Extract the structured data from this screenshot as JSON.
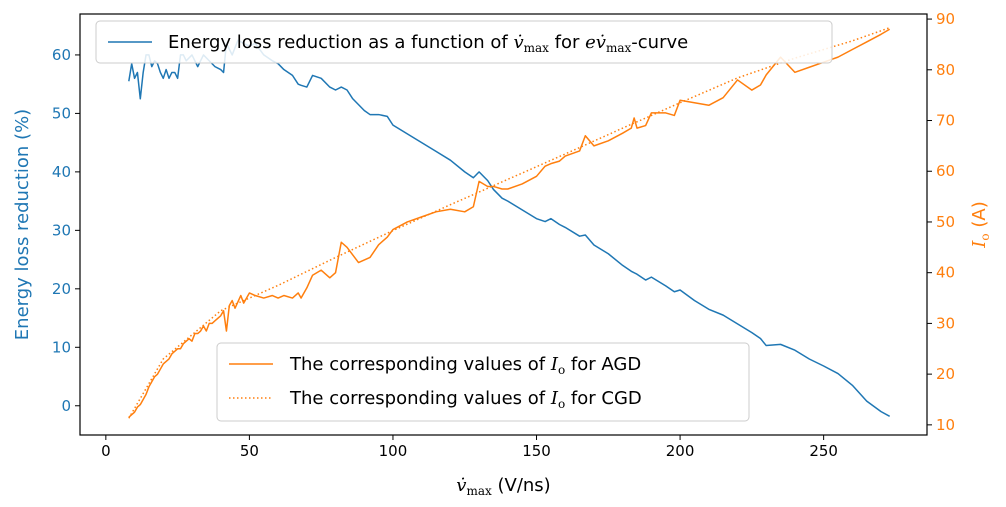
{
  "chart_data": {
    "type": "line",
    "colors": {
      "left": "#1f77b4",
      "right": "#ff7f0e",
      "axis": "#000000"
    },
    "x_axis": {
      "label_math": "v̇",
      "label_sub": "max",
      "label_unit": " (V/ns)",
      "range": [
        -9,
        286
      ],
      "ticks": [
        0,
        50,
        100,
        150,
        200,
        250
      ]
    },
    "y_left": {
      "label": "Energy loss reduction (%)",
      "range": [
        -5,
        67
      ],
      "ticks": [
        0,
        10,
        20,
        30,
        40,
        50,
        60
      ]
    },
    "y_right": {
      "label_math": "I",
      "label_sub": "o",
      "label_unit": " (A)",
      "range": [
        8,
        91
      ],
      "ticks": [
        10,
        20,
        30,
        40,
        50,
        60,
        70,
        80,
        90
      ]
    },
    "legend_top": {
      "placement": "top",
      "entry": {
        "text1": "Energy loss reduction as a function of ",
        "math1": "v̇",
        "sub1": "max",
        "text2": " for ",
        "math2": "ev̇",
        "sub2": "max",
        "text3": "-curve"
      }
    },
    "legend_bottom": {
      "placement": "lower center",
      "entries": [
        {
          "text": "The corresponding values of ",
          "math": "I",
          "sub": "o",
          "tail": " for AGD",
          "style": "solid"
        },
        {
          "text": "The corresponding values of ",
          "math": "I",
          "sub": "o",
          "tail": " for CGD",
          "style": "dotted"
        }
      ]
    },
    "series": [
      {
        "id": "energy_loss",
        "axis": "left",
        "style": "solid",
        "x": [
          8,
          9,
          10,
          11,
          12,
          13,
          14,
          15,
          16,
          17,
          18,
          19,
          20,
          21,
          22,
          23,
          24,
          25,
          26,
          27,
          28,
          30,
          32,
          34,
          36,
          38,
          40,
          41,
          42,
          44,
          46,
          48,
          50,
          52,
          55,
          58,
          60,
          62,
          65,
          67,
          68,
          70,
          72,
          75,
          78,
          80,
          82,
          84,
          86,
          88,
          90,
          92,
          95,
          98,
          100,
          105,
          110,
          115,
          120,
          125,
          128,
          130,
          133,
          135,
          138,
          140,
          145,
          150,
          153,
          155,
          158,
          160,
          165,
          167,
          170,
          175,
          180,
          183,
          185,
          188,
          190,
          195,
          198,
          200,
          205,
          210,
          215,
          220,
          225,
          228,
          230,
          235,
          240,
          245,
          250,
          255,
          260,
          265,
          270,
          273
        ],
        "y": [
          55.5,
          58.5,
          56,
          57,
          52.5,
          57,
          60,
          60,
          58,
          59,
          58.5,
          57,
          56,
          57.5,
          56,
          57,
          57,
          56,
          60,
          60,
          59,
          60,
          58,
          60,
          59,
          58,
          57.5,
          57,
          62,
          60,
          62.5,
          62,
          61.5,
          62,
          60,
          59,
          58.5,
          57.5,
          56.5,
          55,
          54.8,
          54.5,
          56.5,
          56,
          54.5,
          54,
          54.5,
          54,
          52.5,
          51.5,
          50.5,
          49.8,
          49.8,
          49.5,
          48,
          46.5,
          45,
          43.5,
          42,
          40,
          39,
          40,
          38.5,
          37,
          35.5,
          35,
          33.5,
          32,
          31.5,
          32,
          31,
          30.5,
          29,
          29.2,
          27.5,
          26,
          24,
          23,
          22.5,
          21.5,
          22,
          20.5,
          19.5,
          19.8,
          18,
          16.5,
          15.5,
          14,
          12.5,
          11.5,
          10.3,
          10.5,
          9.5,
          8,
          6.8,
          5.5,
          3.5,
          0.8,
          -1,
          -1.8
        ]
      },
      {
        "id": "io_agd",
        "axis": "right",
        "style": "solid",
        "x": [
          8,
          9,
          10,
          11,
          12,
          13,
          14,
          15,
          16,
          17,
          18,
          19,
          20,
          21,
          22,
          23,
          24,
          25,
          26,
          27,
          28,
          29,
          30,
          31,
          32,
          33,
          34,
          35,
          36,
          37,
          38,
          39,
          40,
          41,
          42,
          43,
          44,
          45,
          47,
          48,
          50,
          52,
          55,
          58,
          60,
          62,
          65,
          67,
          68,
          70,
          72,
          75,
          78,
          80,
          82,
          84,
          86,
          88,
          92,
          95,
          98,
          100,
          105,
          110,
          115,
          120,
          125,
          128,
          130,
          133,
          135,
          138,
          140,
          145,
          150,
          153,
          155,
          158,
          160,
          165,
          167,
          170,
          175,
          180,
          183,
          184,
          185,
          188,
          190,
          195,
          198,
          200,
          205,
          210,
          215,
          220,
          225,
          228,
          230,
          235,
          240,
          245,
          250,
          255,
          260,
          265,
          270,
          273
        ],
        "y": [
          11.5,
          12,
          12.5,
          13.5,
          14,
          15,
          16,
          17.5,
          18.5,
          19.5,
          20,
          21,
          22,
          22.5,
          23,
          24,
          24.5,
          25,
          25,
          26,
          26.5,
          27,
          26.5,
          28,
          28,
          28.5,
          29.5,
          28.5,
          30,
          30,
          30.5,
          31,
          31.5,
          32.5,
          28.5,
          33.5,
          34.5,
          33,
          35.5,
          34,
          36,
          35.5,
          35,
          35.5,
          35,
          35.5,
          35,
          36,
          35,
          37,
          39.5,
          40.5,
          39,
          40,
          46,
          45,
          43.5,
          42,
          43,
          45.5,
          47,
          48.5,
          50,
          51,
          52,
          52.5,
          52,
          53,
          58,
          57,
          57,
          56.5,
          56.5,
          57.5,
          59,
          61,
          61.5,
          62,
          63,
          64,
          67,
          65,
          66,
          67.5,
          68.5,
          70.5,
          68.5,
          69,
          71.5,
          71.5,
          71,
          74,
          73.5,
          73,
          74.5,
          78,
          76,
          77,
          79,
          82.5,
          79.5,
          80.5,
          81.5,
          82.5,
          84,
          85.5,
          87,
          88
        ]
      },
      {
        "id": "io_cgd",
        "axis": "right",
        "style": "dotted",
        "x": [
          8,
          20,
          40,
          60,
          80,
          100,
          120,
          140,
          160,
          180,
          200,
          220,
          240,
          260,
          273
        ],
        "y": [
          11.3,
          23,
          32.5,
          37.5,
          43,
          48.3,
          53.4,
          58.4,
          63.4,
          68.5,
          73.5,
          78.4,
          82.3,
          85.7,
          88.3
        ]
      }
    ]
  }
}
